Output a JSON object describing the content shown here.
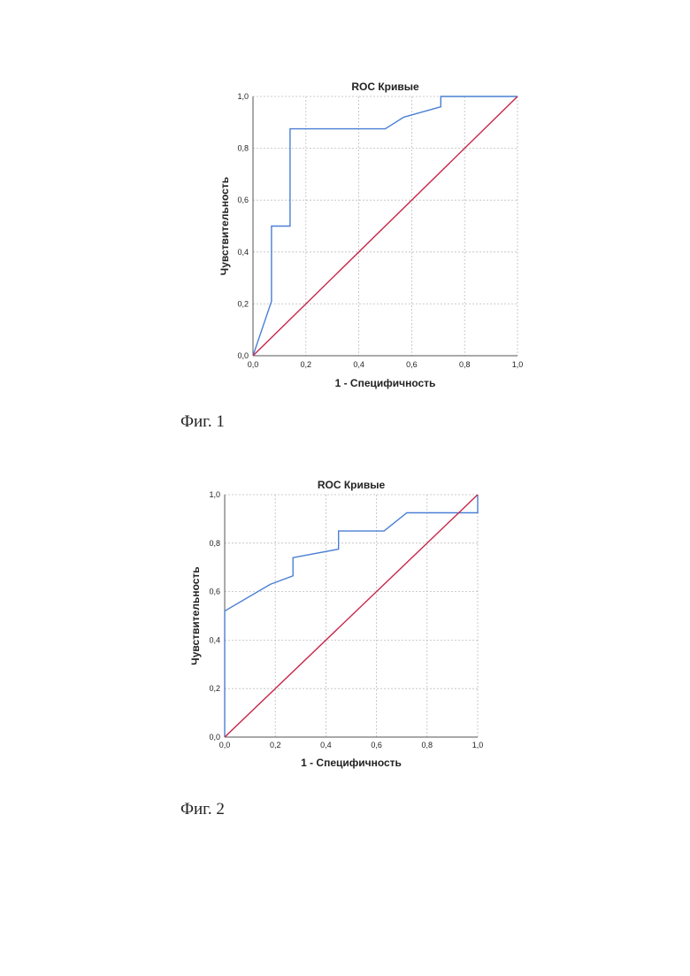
{
  "colors": {
    "roc": "#4a7fd4",
    "reference": "#c8264a",
    "grid": "#bdbdbd",
    "axis": "#555555",
    "text": "#222222"
  },
  "figures": [
    {
      "caption": "Фиг. 1"
    },
    {
      "caption": "Фиг. 2"
    }
  ],
  "chart_data": [
    {
      "type": "line",
      "title": "ROC Кривые",
      "xlabel": "1 - Специфичность",
      "ylabel": "Чувствительность",
      "xlim": [
        0,
        1
      ],
      "ylim": [
        0,
        1
      ],
      "xticks": [
        "0,0",
        "0,2",
        "0,4",
        "0,6",
        "0,8",
        "1,0"
      ],
      "yticks": [
        "0,0",
        "0,2",
        "0,4",
        "0,6",
        "0,8",
        "1,0"
      ],
      "grid": true,
      "series": [
        {
          "role": "roc",
          "x": [
            0,
            0.07,
            0.07,
            0.14,
            0.14,
            0.5,
            0.57,
            0.71,
            0.71,
            1.0
          ],
          "y": [
            0,
            0.21,
            0.5,
            0.5,
            0.875,
            0.875,
            0.92,
            0.96,
            1.0,
            1.0
          ]
        },
        {
          "role": "reference",
          "x": [
            0,
            1
          ],
          "y": [
            0,
            1
          ]
        }
      ]
    },
    {
      "type": "line",
      "title": "ROC Кривые",
      "xlabel": "1 - Специфичность",
      "ylabel": "Чувствительность",
      "xlim": [
        0,
        1
      ],
      "ylim": [
        0,
        1
      ],
      "xticks": [
        "0,0",
        "0,2",
        "0,4",
        "0,6",
        "0,8",
        "1,0"
      ],
      "yticks": [
        "0,0",
        "0,2",
        "0,4",
        "0,6",
        "0,8",
        "1,0"
      ],
      "grid": true,
      "series": [
        {
          "role": "roc",
          "x": [
            0,
            0,
            0.18,
            0.27,
            0.27,
            0.45,
            0.45,
            0.63,
            0.72,
            1.0,
            1.0
          ],
          "y": [
            0,
            0.52,
            0.63,
            0.665,
            0.74,
            0.775,
            0.85,
            0.85,
            0.925,
            0.925,
            1.0
          ]
        },
        {
          "role": "reference",
          "x": [
            0,
            1
          ],
          "y": [
            0,
            1
          ]
        }
      ]
    }
  ]
}
